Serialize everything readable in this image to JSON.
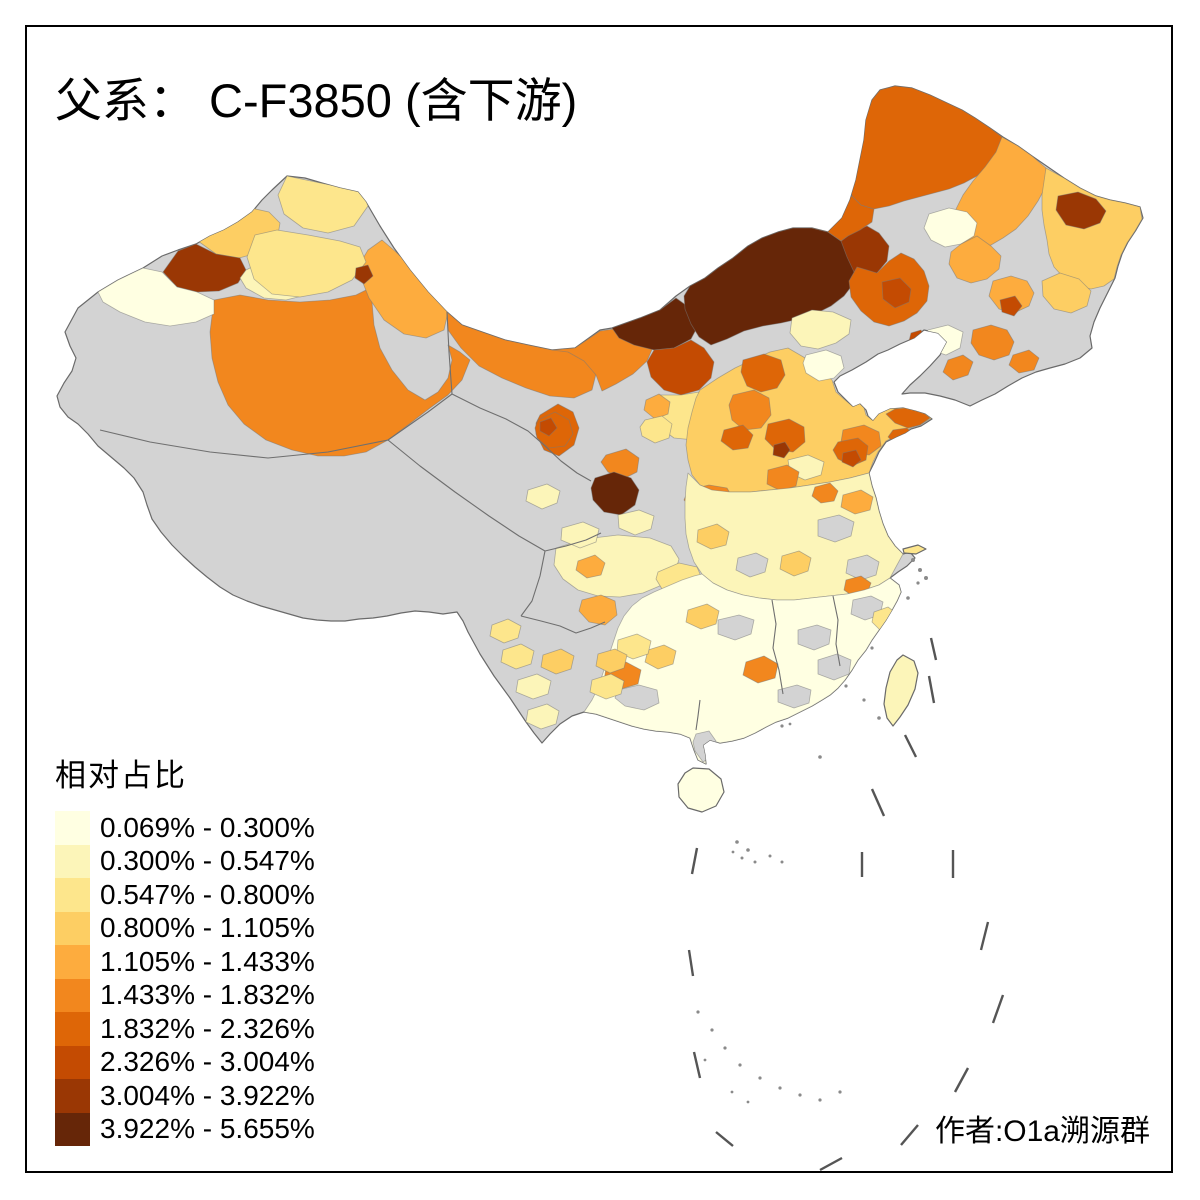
{
  "title": "父系： C-F3850 (含下游)",
  "attribution": "作者:O1a溯源群",
  "legend": {
    "title": "相对占比",
    "labels": [
      "0.069% - 0.300%",
      "0.300% - 0.547%",
      "0.547% - 0.800%",
      "0.800% - 1.105%",
      "1.105% - 1.433%",
      "1.433% - 1.832%",
      "1.832% - 2.326%",
      "2.326% - 3.004%",
      "3.004% - 3.922%",
      "3.922% - 5.655%"
    ]
  },
  "map": {
    "palette": [
      "#FFFFE2",
      "#FCF5B9",
      "#FDE68C",
      "#FDCE63",
      "#FDAC3E",
      "#F2871E",
      "#DE6607",
      "#C44B02",
      "#9A3704",
      "#662608"
    ],
    "no_data_color": "#D3D3D3",
    "border_color": "#6F6F6F",
    "coast_color": "#6A6A6A",
    "dash_line_color": "#555555",
    "islet_color": "#8A8A8A",
    "frame_color": "#000000",
    "background_color": "#FFFFFF"
  }
}
